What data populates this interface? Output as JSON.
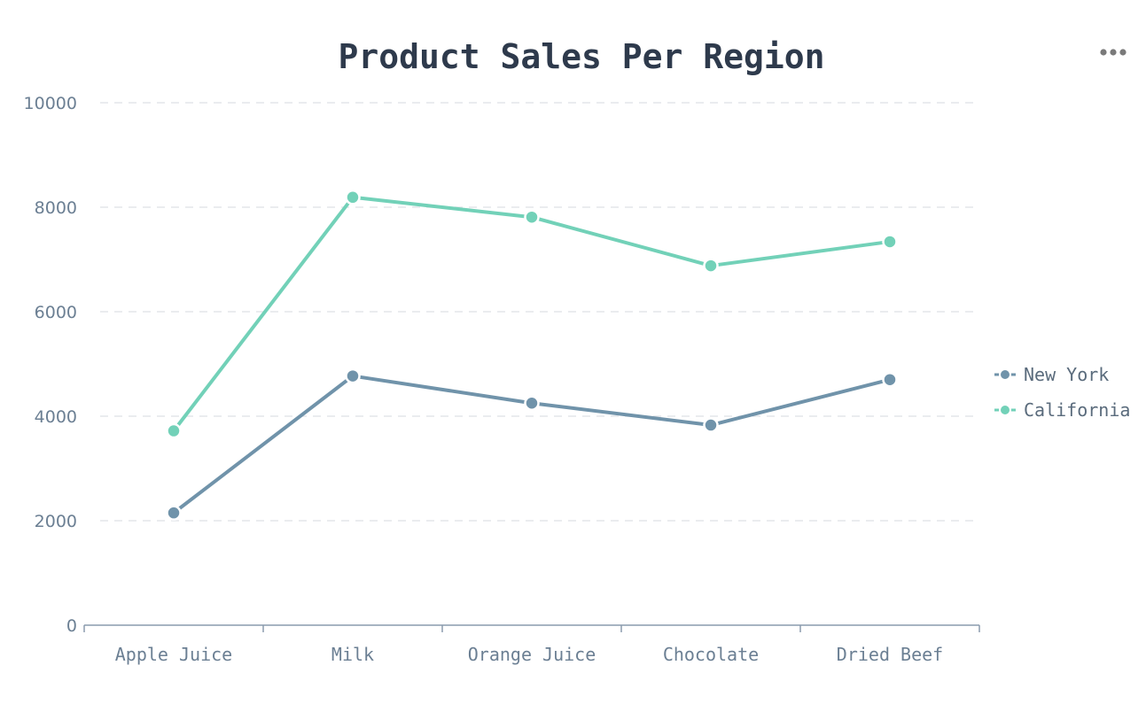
{
  "chart_data": {
    "type": "line",
    "title": "Product Sales Per Region",
    "xlabel": "",
    "ylabel": "",
    "categories": [
      "Apple Juice",
      "Milk",
      "Orange Juice",
      "Chocolate",
      "Dried Beef"
    ],
    "ylim": [
      0,
      10000
    ],
    "yticks": [
      0,
      2000,
      4000,
      6000,
      8000,
      10000
    ],
    "grid": true,
    "legend": "right",
    "series": [
      {
        "name": "New York",
        "color": "#7093aa",
        "values": [
          2150,
          4770,
          4250,
          3830,
          4700
        ]
      },
      {
        "name": "California",
        "color": "#72d1b8",
        "values": [
          3720,
          8190,
          7810,
          6880,
          7340
        ]
      }
    ]
  },
  "toolbar": {
    "menu_icon": "more-horizontal-icon"
  }
}
